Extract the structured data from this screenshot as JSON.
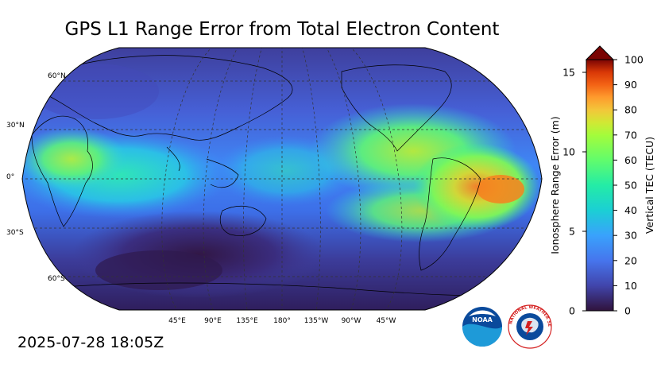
{
  "title": "GPS L1 Range Error from Total Electron Content",
  "timestamp": "2025-07-28 18:05Z",
  "map": {
    "projection": "Robinson",
    "lat_labels": [
      "60°N",
      "30°N",
      "0°",
      "30°S",
      "60°S"
    ],
    "lon_labels": [
      "45°E",
      "90°E",
      "135°E",
      "180°",
      "135°W",
      "90°W",
      "45°W"
    ]
  },
  "colorbar": {
    "left_axis_label": "Ionosphere Range Error (m)",
    "left_ticks": [
      "0",
      "5",
      "10",
      "15"
    ],
    "right_axis_label": "Vertical TEC (TECU)",
    "right_ticks": [
      "0",
      "10",
      "20",
      "30",
      "40",
      "50",
      "60",
      "70",
      "80",
      "90",
      "100"
    ],
    "range_tecu": [
      0,
      100
    ],
    "extend": "max"
  },
  "logos": {
    "noaa": "NOAA",
    "nws": "NATIONAL WEATHER SERVICE"
  },
  "colors": {
    "low": "#30123b",
    "mid": "#1ae4b6",
    "high": "#7a0403"
  }
}
